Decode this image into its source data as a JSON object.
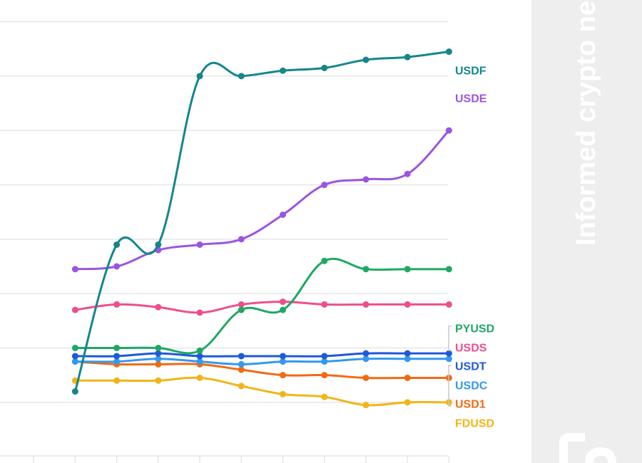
{
  "colors": {
    "background": "#ffffff",
    "grid": "#e6e6e6",
    "sidebar": "#eeeeee",
    "watermark": "#ffffff"
  },
  "watermark": {
    "text": "Informed crypto ne",
    "logo_icon": "publisher-logo-icon"
  },
  "chart_data": {
    "type": "line",
    "title": "",
    "xlabel": "",
    "ylabel": "",
    "x": [
      0,
      1,
      2,
      3,
      4,
      5,
      6,
      7,
      8,
      9,
      10
    ],
    "xlim": [
      -0.81,
      9.89
    ],
    "ylim": [
      10.03,
      26.8
    ],
    "gridlines_y": [
      12,
      14,
      16,
      18,
      20,
      22,
      24,
      26
    ],
    "grid": true,
    "legend": "none",
    "series": [
      {
        "name": "USDF",
        "color": "#14868c",
        "values": [
          null,
          12.4,
          17.8,
          17.8,
          24.0,
          24.0,
          24.2,
          24.3,
          24.6,
          24.7,
          24.9
        ]
      },
      {
        "name": "USDE",
        "color": "#9a55e0",
        "values": [
          null,
          16.9,
          17.0,
          17.6,
          17.8,
          18.0,
          18.9,
          20.0,
          20.2,
          20.4,
          22.0
        ]
      },
      {
        "name": "PYUSD",
        "color": "#1fa862",
        "values": [
          null,
          14.0,
          14.0,
          14.0,
          13.9,
          15.4,
          15.4,
          17.2,
          16.9,
          16.9,
          16.9
        ]
      },
      {
        "name": "USDS",
        "color": "#ef4e8b",
        "values": [
          null,
          15.4,
          15.6,
          15.5,
          15.3,
          15.6,
          15.7,
          15.6,
          15.6,
          15.6,
          15.6
        ]
      },
      {
        "name": "USDT",
        "color": "#1d5ad8",
        "values": [
          null,
          13.7,
          13.7,
          13.8,
          13.7,
          13.7,
          13.7,
          13.7,
          13.8,
          13.8,
          13.8
        ]
      },
      {
        "name": "USDC",
        "color": "#3399ee",
        "values": [
          null,
          13.5,
          13.5,
          13.6,
          13.5,
          13.4,
          13.5,
          13.5,
          13.6,
          13.6,
          13.6
        ]
      },
      {
        "name": "USD1",
        "color": "#f26a12",
        "values": [
          null,
          13.5,
          13.4,
          13.4,
          13.4,
          13.2,
          13.0,
          13.0,
          12.9,
          12.9,
          12.9
        ]
      },
      {
        "name": "FDUSD",
        "color": "#f2b418",
        "values": [
          null,
          12.8,
          12.8,
          12.8,
          12.9,
          12.6,
          12.3,
          12.2,
          11.9,
          12.0,
          12.0
        ]
      }
    ],
    "end_labels": [
      "USDF",
      "USDE",
      "PYUSD",
      "USDS",
      "USDT",
      "USDC",
      "USD1",
      "FDUSD"
    ]
  }
}
